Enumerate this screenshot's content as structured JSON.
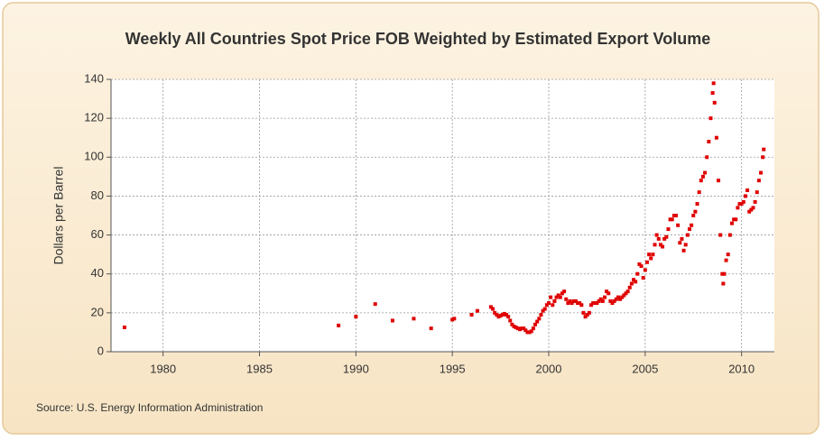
{
  "chart_data": {
    "type": "scatter",
    "title": "Weekly All Countries Spot Price FOB Weighted by Estimated Export Volume",
    "y_label": "Dollars per Barrel",
    "source": "Source: U.S. Energy Information Administration",
    "color": "#e00000",
    "grid": true,
    "xlim": [
      1977.3,
      2011.7
    ],
    "ylim": [
      0,
      140
    ],
    "xticks": [
      1980,
      1985,
      1990,
      1995,
      2000,
      2005,
      2010
    ],
    "yticks": [
      0,
      20,
      40,
      60,
      80,
      100,
      120,
      140
    ],
    "x": [
      1978.0,
      1989.1,
      1990.0,
      1991.0,
      1991.9,
      1993.0,
      1993.9,
      1995.0,
      1995.1,
      1996.0,
      1996.3,
      1997.0,
      1997.1,
      1997.2,
      1997.3,
      1997.4,
      1997.5,
      1997.6,
      1997.7,
      1997.8,
      1997.9,
      1998.0,
      1998.1,
      1998.2,
      1998.3,
      1998.4,
      1998.5,
      1998.6,
      1998.7,
      1998.8,
      1998.9,
      1999.0,
      1999.1,
      1999.2,
      1999.3,
      1999.4,
      1999.5,
      1999.6,
      1999.7,
      1999.8,
      1999.9,
      2000.0,
      2000.1,
      2000.2,
      2000.3,
      2000.4,
      2000.5,
      2000.6,
      2000.7,
      2000.8,
      2000.9,
      2001.0,
      2001.1,
      2001.2,
      2001.3,
      2001.4,
      2001.5,
      2001.6,
      2001.7,
      2001.8,
      2001.9,
      2002.0,
      2002.1,
      2002.2,
      2002.3,
      2002.4,
      2002.5,
      2002.6,
      2002.7,
      2002.8,
      2002.9,
      2003.0,
      2003.1,
      2003.2,
      2003.3,
      2003.4,
      2003.5,
      2003.6,
      2003.7,
      2003.8,
      2003.9,
      2004.0,
      2004.1,
      2004.2,
      2004.3,
      2004.4,
      2004.5,
      2004.6,
      2004.7,
      2004.8,
      2004.9,
      2005.0,
      2005.1,
      2005.2,
      2005.3,
      2005.4,
      2005.5,
      2005.6,
      2005.7,
      2005.8,
      2005.9,
      2006.0,
      2006.1,
      2006.2,
      2006.3,
      2006.4,
      2006.5,
      2006.6,
      2006.7,
      2006.8,
      2006.9,
      2007.0,
      2007.1,
      2007.2,
      2007.3,
      2007.4,
      2007.5,
      2007.6,
      2007.7,
      2007.8,
      2007.9,
      2008.0,
      2008.1,
      2008.2,
      2008.3,
      2008.4,
      2008.5,
      2008.55,
      2008.6,
      2008.7,
      2008.8,
      2008.9,
      2009.0,
      2009.05,
      2009.1,
      2009.2,
      2009.3,
      2009.4,
      2009.5,
      2009.6,
      2009.7,
      2009.8,
      2009.9,
      2010.0,
      2010.1,
      2010.2,
      2010.3,
      2010.4,
      2010.5,
      2010.6,
      2010.7,
      2010.8,
      2010.9,
      2011.0,
      2011.1,
      2011.15
    ],
    "values": [
      12.5,
      13.5,
      18,
      24.5,
      16,
      17,
      12,
      16.5,
      17,
      19,
      21,
      23,
      22,
      20,
      19,
      18,
      18.5,
      19,
      19.5,
      19,
      18,
      16,
      14,
      13,
      12.5,
      12,
      11.5,
      12,
      12,
      11,
      10,
      10,
      10.5,
      12,
      14,
      15.5,
      17,
      19,
      21,
      22,
      24,
      25,
      28,
      24,
      26,
      28,
      29,
      28,
      30,
      31,
      27,
      25,
      26,
      25,
      26,
      26,
      25,
      25,
      24,
      20,
      18,
      19,
      20,
      24,
      25,
      25,
      25,
      26,
      27,
      26,
      28,
      31,
      30,
      26,
      25,
      26,
      27,
      28,
      27,
      28,
      29,
      30,
      31,
      33,
      35,
      37,
      36,
      40,
      45,
      44,
      38,
      42,
      46,
      50,
      48,
      50,
      55,
      60,
      58,
      55,
      54,
      58,
      59,
      63,
      68,
      68,
      70,
      70,
      65,
      56,
      58,
      52,
      55,
      60,
      63,
      65,
      70,
      72,
      76,
      82,
      88,
      90,
      92,
      100,
      108,
      120,
      133,
      138,
      128,
      110,
      88,
      60,
      40,
      35,
      40,
      47,
      50,
      60,
      66,
      68,
      68,
      74,
      76,
      76,
      77,
      80,
      83,
      72,
      73,
      74,
      77,
      82,
      88,
      92,
      100,
      104
    ]
  }
}
